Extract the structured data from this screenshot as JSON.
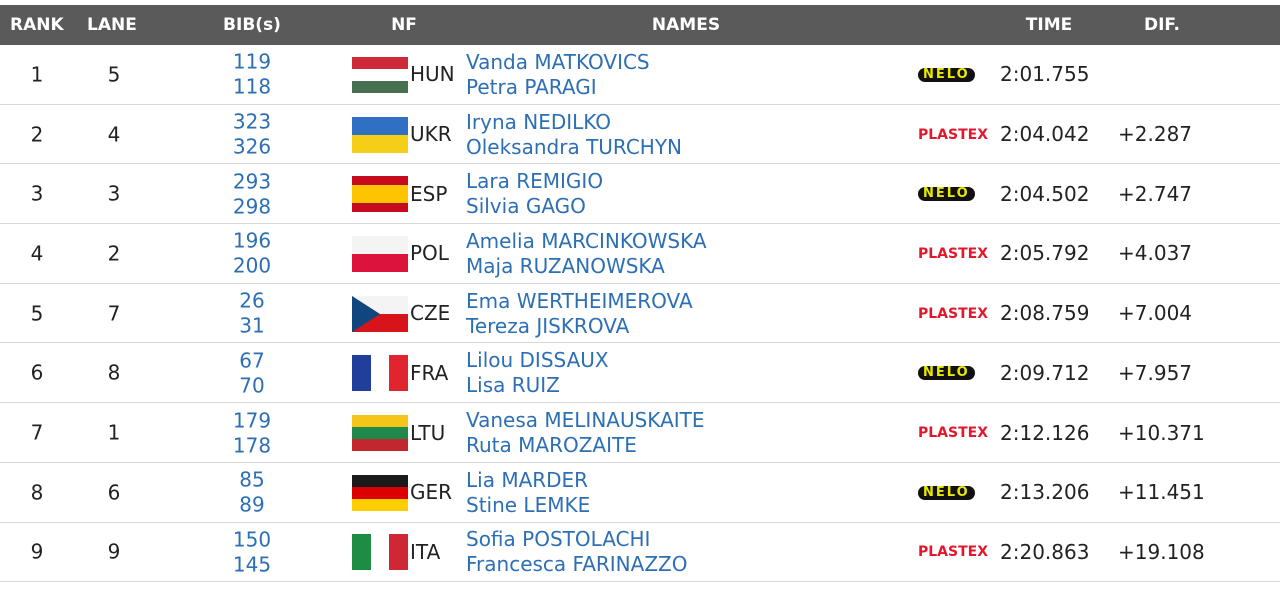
{
  "table": {
    "columns": [
      "RANK",
      "LANE",
      "BIB(s)",
      "NF",
      "NAMES",
      "TIME",
      "DIF."
    ],
    "rows": [
      {
        "rank": 1,
        "lane": 5,
        "bibs": [
          119,
          118
        ],
        "nf": "HUN",
        "flag": {
          "stripes": "horizontal",
          "colors": [
            "#ce2939",
            "#ffffff",
            "#477050"
          ]
        },
        "names": [
          "Vanda MATKOVICS",
          "Petra PARAGI"
        ],
        "boat": "NELO",
        "time": "2:01.755"
      },
      {
        "rank": 2,
        "lane": 4,
        "bibs": [
          323,
          326
        ],
        "nf": "UKR",
        "flag": {
          "stripes": "horizontal",
          "colors": [
            "#2f6fc4",
            "#f5cf17"
          ]
        },
        "names": [
          "Iryna NEDILKO",
          "Oleksandra TURCHYN"
        ],
        "boat": "PLASTEX",
        "time": "2:04.042",
        "dif": "+2.287"
      },
      {
        "rank": 3,
        "lane": 3,
        "bibs": [
          293,
          298
        ],
        "nf": "ESP",
        "flag": {
          "stripes": "horizontal",
          "colors": [
            "#c60b1e",
            "#ffc400",
            "#ffc400",
            "#c60b1e"
          ]
        },
        "names": [
          "Lara REMIGIO",
          "Silvia GAGO"
        ],
        "boat": "NELO",
        "time": "2:04.502",
        "dif": "+2.747"
      },
      {
        "rank": 4,
        "lane": 2,
        "bibs": [
          196,
          200
        ],
        "nf": "POL",
        "flag": {
          "stripes": "horizontal",
          "colors": [
            "#f4f4f4",
            "#dc143c"
          ]
        },
        "names": [
          "Amelia MARCINKOWSKA",
          "Maja RUZANOWSKA"
        ],
        "boat": "PLASTEX",
        "time": "2:05.792",
        "dif": "+4.037"
      },
      {
        "rank": 5,
        "lane": 7,
        "bibs": [
          26,
          31
        ],
        "nf": "CZE",
        "flag": {
          "stripes": "horizontal",
          "colors": [
            "#f4f4f4",
            "#d7141a"
          ],
          "triangle": "#11457e"
        },
        "names": [
          "Ema WERTHEIMEROVA",
          "Tereza JISKROVA"
        ],
        "boat": "PLASTEX",
        "time": "2:08.759",
        "dif": "+7.004"
      },
      {
        "rank": 6,
        "lane": 8,
        "bibs": [
          67,
          70
        ],
        "nf": "FRA",
        "flag": {
          "stripes": "vertical",
          "colors": [
            "#1f3f9a",
            "#ffffff",
            "#e1252e"
          ]
        },
        "names": [
          "Lilou DISSAUX",
          "Lisa RUIZ"
        ],
        "boat": "NELO",
        "time": "2:09.712",
        "dif": "+7.957"
      },
      {
        "rank": 7,
        "lane": 1,
        "bibs": [
          179,
          178
        ],
        "nf": "LTU",
        "flag": {
          "stripes": "horizontal",
          "colors": [
            "#f5c518",
            "#1f8a4c",
            "#c1272d"
          ]
        },
        "names": [
          "Vanesa MELINAUSKAITE",
          "Ruta MAROZAITE"
        ],
        "boat": "PLASTEX",
        "time": "2:12.126",
        "dif": "+10.371"
      },
      {
        "rank": 8,
        "lane": 6,
        "bibs": [
          85,
          89
        ],
        "nf": "GER",
        "flag": {
          "stripes": "horizontal",
          "colors": [
            "#1a1a1a",
            "#dd0000",
            "#ffce00"
          ]
        },
        "names": [
          "Lia MARDER",
          "Stine LEMKE"
        ],
        "boat": "NELO",
        "time": "2:13.206",
        "dif": "+11.451"
      },
      {
        "rank": 9,
        "lane": 9,
        "bibs": [
          150,
          145
        ],
        "nf": "ITA",
        "flag": {
          "stripes": "vertical",
          "colors": [
            "#1e8c45",
            "#ffffff",
            "#cf2734"
          ]
        },
        "names": [
          "Sofia POSTOLACHI",
          "Francesca FARINAZZO"
        ],
        "boat": "PLASTEX",
        "time": "2:20.863",
        "dif": "+19.108"
      }
    ]
  }
}
